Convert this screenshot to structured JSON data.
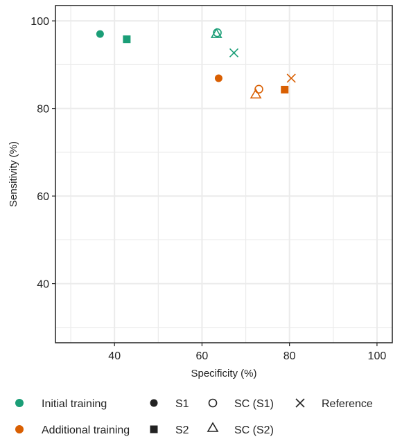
{
  "chart_data": {
    "type": "scatter",
    "xlabel": "Specificity (%)",
    "ylabel": "Sensitivity (%)",
    "xlim": [
      26.5,
      103.5
    ],
    "ylim": [
      26.5,
      103.5
    ],
    "x_ticks": [
      40,
      60,
      80,
      100
    ],
    "y_ticks": [
      40,
      60,
      80,
      100
    ],
    "grid": true,
    "legend_position": "bottom",
    "colors": {
      "Initial training": "#1b9e77",
      "Additional training": "#d95f02"
    },
    "color_legend": [
      "Initial training",
      "Additional training"
    ],
    "shape_legend": [
      {
        "label": "S1",
        "shape": "filled-circle"
      },
      {
        "label": "S2",
        "shape": "filled-square"
      },
      {
        "label": "SC (S1)",
        "shape": "open-circle"
      },
      {
        "label": "SC (S2)",
        "shape": "open-triangle"
      },
      {
        "label": "Reference",
        "shape": "cross"
      }
    ],
    "series": [
      {
        "group": "Initial training",
        "shape": "filled-circle",
        "x": 36.7,
        "y": 97.0
      },
      {
        "group": "Initial training",
        "shape": "filled-square",
        "x": 42.8,
        "y": 95.8
      },
      {
        "group": "Initial training",
        "shape": "open-circle",
        "x": 63.5,
        "y": 97.3
      },
      {
        "group": "Initial training",
        "shape": "open-triangle",
        "x": 63.3,
        "y": 97.0
      },
      {
        "group": "Initial training",
        "shape": "cross",
        "x": 67.3,
        "y": 92.7
      },
      {
        "group": "Additional training",
        "shape": "filled-circle",
        "x": 63.8,
        "y": 86.9
      },
      {
        "group": "Additional training",
        "shape": "filled-square",
        "x": 78.9,
        "y": 84.3
      },
      {
        "group": "Additional training",
        "shape": "open-circle",
        "x": 73.0,
        "y": 84.4
      },
      {
        "group": "Additional training",
        "shape": "open-triangle",
        "x": 72.3,
        "y": 83.2
      },
      {
        "group": "Additional training",
        "shape": "cross",
        "x": 80.4,
        "y": 86.9
      }
    ]
  }
}
